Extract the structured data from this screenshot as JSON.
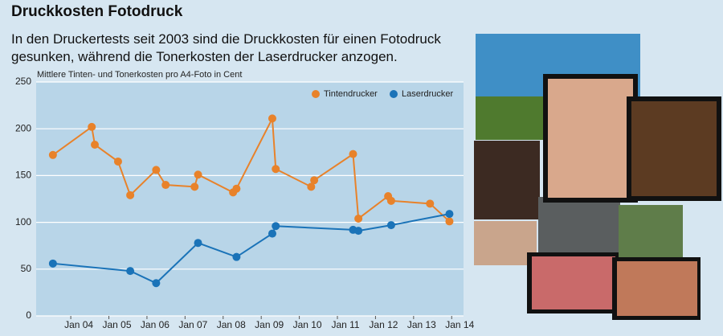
{
  "chart_data": {
    "type": "line",
    "title": "Druckkosten Fotodruck",
    "subtitle": "In den Druckertests seit 2003 sind die Druckkosten für einen Fotodruck gesunken, während die Tonerkosten der Laserdrucker anzogen.",
    "y_label": "Mittlere Tinten- und Tonerkosten pro A4-Foto in Cent",
    "series": [
      {
        "name": "Tintendrucker",
        "color": "#e8822a",
        "x": [
          2003.32,
          2004.34,
          2004.42,
          2005.03,
          2005.35,
          2006.03,
          2006.28,
          2007.04,
          2007.13,
          2008.05,
          2008.14,
          2009.08,
          2009.17,
          2010.1,
          2010.18,
          2011.2,
          2011.34,
          2012.12,
          2012.2,
          2013.22,
          2013.73
        ],
        "values": [
          172,
          202,
          183,
          165,
          129,
          156,
          140,
          138,
          151,
          132,
          136,
          211,
          157,
          138,
          145,
          173,
          104,
          128,
          123,
          120,
          101
        ]
      },
      {
        "name": "Laserdrucker",
        "color": "#1a73b8",
        "x": [
          2003.32,
          2005.35,
          2006.03,
          2007.13,
          2008.14,
          2009.08,
          2009.17,
          2011.2,
          2011.34,
          2012.2,
          2013.73
        ],
        "values": [
          56,
          48,
          35,
          78,
          63,
          88,
          96,
          92,
          91,
          97,
          109
        ]
      }
    ],
    "xlim": [
      2002.88,
      2014.1
    ],
    "xticks": [
      {
        "value": 2004,
        "label": "Jan 04"
      },
      {
        "value": 2005,
        "label": "Jan 05"
      },
      {
        "value": 2006,
        "label": "Jan 06"
      },
      {
        "value": 2007,
        "label": "Jan 07"
      },
      {
        "value": 2008,
        "label": "Jan 08"
      },
      {
        "value": 2009,
        "label": "Jan 09"
      },
      {
        "value": 2010,
        "label": "Jan 10"
      },
      {
        "value": 2011,
        "label": "Jan 11"
      },
      {
        "value": 2012,
        "label": "Jan 12"
      },
      {
        "value": 2013,
        "label": "Jan 13"
      },
      {
        "value": 2014,
        "label": "Jan 14"
      }
    ],
    "ylim": [
      0,
      250
    ],
    "yticks": [
      0,
      50,
      100,
      150,
      200,
      250
    ],
    "grid": true
  }
}
